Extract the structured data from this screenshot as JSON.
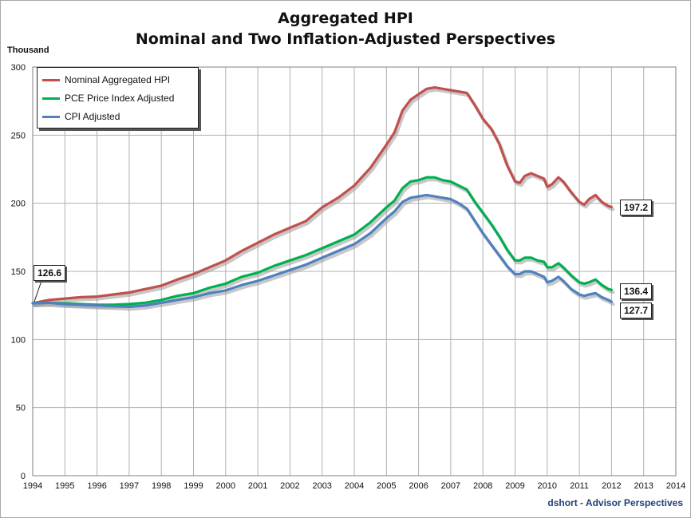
{
  "title_line1": "Aggregated HPI",
  "title_line2": "Nominal and Two Inflation-Adjusted Perspectives",
  "y_unit": "Thousand",
  "credit": "dshort - Advisor Perspectives",
  "chart_data": {
    "type": "line",
    "xlim": [
      1994,
      2014
    ],
    "ylim": [
      0,
      300
    ],
    "x_ticks": [
      "1994",
      "1995",
      "1996",
      "1997",
      "1998",
      "1999",
      "2000",
      "2001",
      "2002",
      "2003",
      "2004",
      "2005",
      "2006",
      "2007",
      "2008",
      "2009",
      "2010",
      "2011",
      "2012",
      "2013",
      "2014"
    ],
    "y_ticks": [
      "0",
      "50",
      "100",
      "150",
      "200",
      "250",
      "300"
    ],
    "grid": true,
    "legend_placement": "top-left",
    "series": [
      {
        "name": "Nominal Aggregated HPI",
        "color": "#c0504d",
        "points": [
          [
            1994.0,
            126.6
          ],
          [
            1994.5,
            129
          ],
          [
            1995.0,
            130
          ],
          [
            1995.5,
            131
          ],
          [
            1996.0,
            131.5
          ],
          [
            1996.5,
            133
          ],
          [
            1997.0,
            134.5
          ],
          [
            1997.5,
            137
          ],
          [
            1998.0,
            139.5
          ],
          [
            1998.5,
            144
          ],
          [
            1999.0,
            148
          ],
          [
            1999.5,
            153
          ],
          [
            2000.0,
            158
          ],
          [
            2000.5,
            165
          ],
          [
            2001.0,
            171
          ],
          [
            2001.5,
            177
          ],
          [
            2002.0,
            182
          ],
          [
            2002.5,
            187
          ],
          [
            2003.0,
            197
          ],
          [
            2003.5,
            204
          ],
          [
            2004.0,
            213
          ],
          [
            2004.5,
            226
          ],
          [
            2005.0,
            243
          ],
          [
            2005.25,
            252
          ],
          [
            2005.5,
            268
          ],
          [
            2005.75,
            276
          ],
          [
            2006.0,
            280
          ],
          [
            2006.25,
            284
          ],
          [
            2006.5,
            285
          ],
          [
            2006.75,
            284
          ],
          [
            2007.0,
            283
          ],
          [
            2007.25,
            282
          ],
          [
            2007.5,
            281
          ],
          [
            2007.75,
            272
          ],
          [
            2008.0,
            262
          ],
          [
            2008.25,
            255
          ],
          [
            2008.5,
            244
          ],
          [
            2008.75,
            228
          ],
          [
            2009.0,
            216
          ],
          [
            2009.15,
            215
          ],
          [
            2009.3,
            220
          ],
          [
            2009.5,
            222
          ],
          [
            2009.7,
            220
          ],
          [
            2009.9,
            218
          ],
          [
            2010.0,
            212
          ],
          [
            2010.15,
            214
          ],
          [
            2010.35,
            219
          ],
          [
            2010.5,
            216
          ],
          [
            2010.75,
            208
          ],
          [
            2011.0,
            201
          ],
          [
            2011.15,
            199
          ],
          [
            2011.3,
            203
          ],
          [
            2011.5,
            206
          ],
          [
            2011.7,
            201
          ],
          [
            2011.9,
            198
          ],
          [
            2012.0,
            197.2
          ]
        ]
      },
      {
        "name": "PCE Price Index Adjusted",
        "color": "#00b050",
        "points": [
          [
            1994.0,
            126.6
          ],
          [
            1994.5,
            127
          ],
          [
            1995.0,
            126.5
          ],
          [
            1995.5,
            126
          ],
          [
            1996.0,
            125.5
          ],
          [
            1996.5,
            125.5
          ],
          [
            1997.0,
            126
          ],
          [
            1997.5,
            127
          ],
          [
            1998.0,
            129
          ],
          [
            1998.5,
            132
          ],
          [
            1999.0,
            134
          ],
          [
            1999.5,
            138
          ],
          [
            2000.0,
            141
          ],
          [
            2000.5,
            146
          ],
          [
            2001.0,
            149
          ],
          [
            2001.5,
            154
          ],
          [
            2002.0,
            158
          ],
          [
            2002.5,
            162
          ],
          [
            2003.0,
            167
          ],
          [
            2003.5,
            172
          ],
          [
            2004.0,
            177
          ],
          [
            2004.5,
            186
          ],
          [
            2005.0,
            197
          ],
          [
            2005.25,
            202
          ],
          [
            2005.5,
            211
          ],
          [
            2005.75,
            216
          ],
          [
            2006.0,
            217
          ],
          [
            2006.25,
            219
          ],
          [
            2006.5,
            219
          ],
          [
            2006.75,
            217
          ],
          [
            2007.0,
            216
          ],
          [
            2007.25,
            213
          ],
          [
            2007.5,
            210
          ],
          [
            2007.75,
            201
          ],
          [
            2008.0,
            193
          ],
          [
            2008.25,
            185
          ],
          [
            2008.5,
            176
          ],
          [
            2008.75,
            166
          ],
          [
            2009.0,
            158
          ],
          [
            2009.15,
            158
          ],
          [
            2009.3,
            160
          ],
          [
            2009.5,
            160
          ],
          [
            2009.7,
            158
          ],
          [
            2009.9,
            157
          ],
          [
            2010.0,
            153
          ],
          [
            2010.15,
            153
          ],
          [
            2010.35,
            156
          ],
          [
            2010.5,
            153
          ],
          [
            2010.75,
            147
          ],
          [
            2011.0,
            142
          ],
          [
            2011.15,
            141
          ],
          [
            2011.3,
            142
          ],
          [
            2011.5,
            144
          ],
          [
            2011.7,
            140
          ],
          [
            2011.9,
            137
          ],
          [
            2012.0,
            136.4
          ]
        ]
      },
      {
        "name": "CPI Adjusted",
        "color": "#4f81bd",
        "points": [
          [
            1994.0,
            126.6
          ],
          [
            1994.5,
            127
          ],
          [
            1995.0,
            126
          ],
          [
            1995.5,
            125.5
          ],
          [
            1996.0,
            125
          ],
          [
            1996.5,
            124.5
          ],
          [
            1997.0,
            124
          ],
          [
            1997.5,
            125
          ],
          [
            1998.0,
            127
          ],
          [
            1998.5,
            129
          ],
          [
            1999.0,
            131
          ],
          [
            1999.5,
            134
          ],
          [
            2000.0,
            136
          ],
          [
            2000.5,
            140
          ],
          [
            2001.0,
            143
          ],
          [
            2001.5,
            147
          ],
          [
            2002.0,
            151
          ],
          [
            2002.5,
            155
          ],
          [
            2003.0,
            160
          ],
          [
            2003.5,
            165
          ],
          [
            2004.0,
            170
          ],
          [
            2004.5,
            178
          ],
          [
            2005.0,
            189
          ],
          [
            2005.25,
            194
          ],
          [
            2005.5,
            201
          ],
          [
            2005.75,
            204
          ],
          [
            2006.0,
            205
          ],
          [
            2006.25,
            206
          ],
          [
            2006.5,
            205
          ],
          [
            2006.75,
            204
          ],
          [
            2007.0,
            203
          ],
          [
            2007.25,
            200
          ],
          [
            2007.5,
            196
          ],
          [
            2007.75,
            187
          ],
          [
            2008.0,
            178
          ],
          [
            2008.25,
            170
          ],
          [
            2008.5,
            162
          ],
          [
            2008.75,
            154
          ],
          [
            2009.0,
            148
          ],
          [
            2009.15,
            148
          ],
          [
            2009.3,
            150
          ],
          [
            2009.5,
            150
          ],
          [
            2009.7,
            148
          ],
          [
            2009.9,
            146
          ],
          [
            2010.0,
            142
          ],
          [
            2010.15,
            143
          ],
          [
            2010.35,
            146
          ],
          [
            2010.5,
            143
          ],
          [
            2010.75,
            137
          ],
          [
            2011.0,
            133
          ],
          [
            2011.15,
            132
          ],
          [
            2011.3,
            133
          ],
          [
            2011.5,
            134
          ],
          [
            2011.7,
            131
          ],
          [
            2011.9,
            129
          ],
          [
            2012.0,
            127.7
          ]
        ]
      }
    ],
    "annotations": [
      {
        "text": "126.6",
        "series": "start"
      },
      {
        "text": "197.2",
        "series": "Nominal Aggregated HPI"
      },
      {
        "text": "136.4",
        "series": "PCE Price Index Adjusted"
      },
      {
        "text": "127.7",
        "series": "CPI Adjusted"
      }
    ]
  }
}
